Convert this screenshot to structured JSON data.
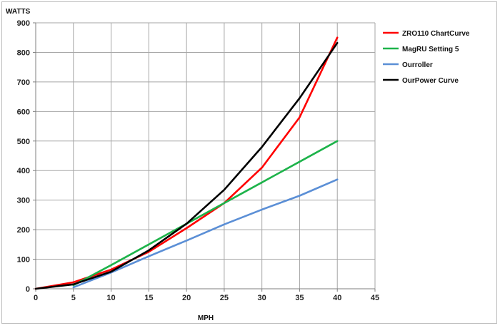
{
  "chart_data": {
    "type": "line",
    "title": "",
    "xlabel": "MPH",
    "ylabel": "WATTS",
    "xlim": [
      0,
      45
    ],
    "ylim": [
      0,
      900
    ],
    "x_ticks": [
      0,
      5,
      10,
      15,
      20,
      25,
      30,
      35,
      40,
      45
    ],
    "y_ticks": [
      0,
      100,
      200,
      300,
      400,
      500,
      600,
      700,
      800,
      900
    ],
    "grid": true,
    "legend_position": "right",
    "series": [
      {
        "name": "ZRO110 ChartCurve",
        "color": "#ff0000",
        "x": [
          0,
          5,
          10,
          15,
          20,
          25,
          30,
          35,
          40
        ],
        "y": [
          0,
          22,
          65,
          125,
          205,
          290,
          410,
          580,
          850
        ]
      },
      {
        "name": "MagRU Setting 5",
        "color": "#1db34a",
        "x": [
          5,
          10,
          15,
          20,
          25,
          30,
          35,
          40
        ],
        "y": [
          12,
          80,
          150,
          220,
          290,
          360,
          430,
          500
        ]
      },
      {
        "name": "Ourroller",
        "color": "#5b8fd6",
        "x": [
          5,
          10,
          15,
          20,
          25,
          30,
          35,
          40
        ],
        "y": [
          5,
          55,
          110,
          163,
          218,
          268,
          315,
          370
        ]
      },
      {
        "name": "OurPower Curve",
        "color": "#000000",
        "x": [
          0,
          5,
          10,
          15,
          20,
          25,
          30,
          35,
          40
        ],
        "y": [
          0,
          15,
          58,
          130,
          220,
          335,
          480,
          645,
          832
        ]
      }
    ]
  }
}
